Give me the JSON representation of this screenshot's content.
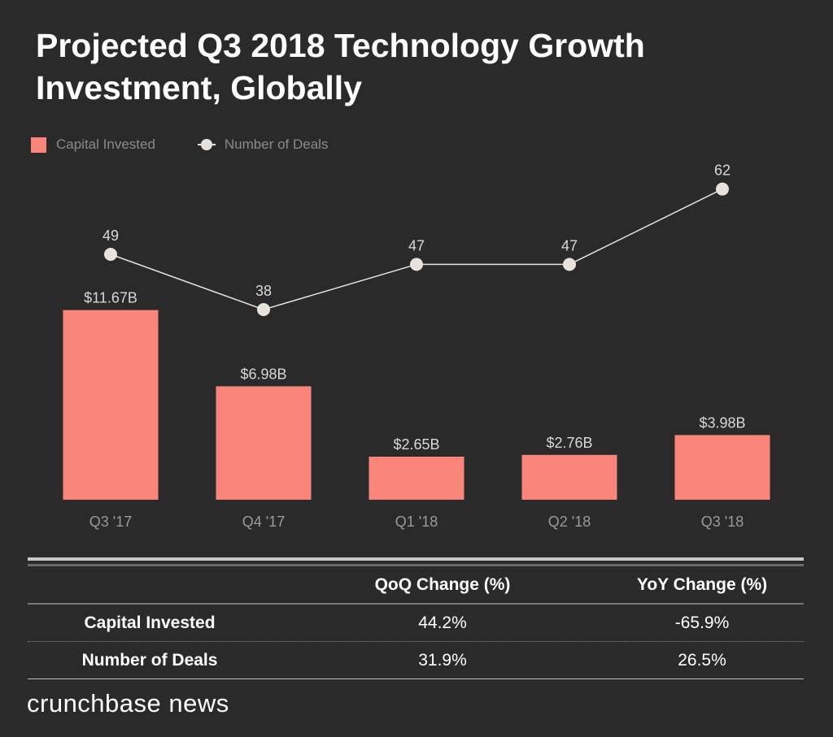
{
  "title": "Projected Q3 2018 Technology Growth Investment, Globally",
  "chart_data": {
    "type": "bar",
    "title": "Projected Q3 2018 Technology Growth Investment, Globally",
    "categories": [
      "Q3 '17",
      "Q4 '17",
      "Q1 '18",
      "Q2 '18",
      "Q3 '18"
    ],
    "series": [
      {
        "name": "Capital Invested",
        "type": "bar",
        "values": [
          11.67,
          6.98,
          2.65,
          2.76,
          3.98
        ],
        "labels": [
          "$11.67B",
          "$6.98B",
          "$2.65B",
          "$2.76B",
          "$3.98B"
        ],
        "color": "#fa857a"
      },
      {
        "name": "Number of Deals",
        "type": "line",
        "values": [
          49,
          38,
          47,
          47,
          62
        ],
        "labels": [
          "49",
          "38",
          "47",
          "47",
          "62"
        ],
        "color": "#e9e2dc"
      }
    ],
    "legend": "top-left",
    "grid": false
  },
  "table": {
    "headers": [
      "",
      "QoQ Change (%)",
      "YoY Change (%)"
    ],
    "rows": [
      [
        "Capital Invested",
        "44.2%",
        "-65.9%"
      ],
      [
        "Number of Deals",
        "31.9%",
        "26.5%"
      ]
    ]
  },
  "logo": "crunchbase news"
}
